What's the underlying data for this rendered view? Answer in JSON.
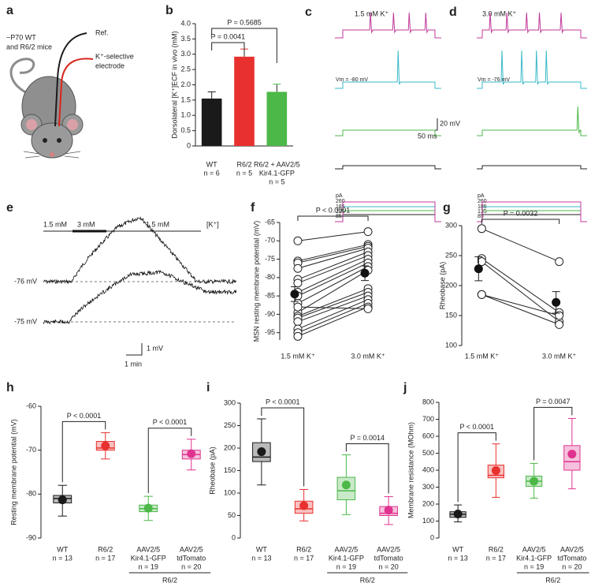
{
  "panel_a": {
    "label": "a",
    "mice": [
      "~P70 WT",
      "and R6/2 mice"
    ],
    "reference": "Ref.",
    "electrode": [
      "K⁺-selective",
      "electrode"
    ]
  },
  "panel_c": {
    "label": "c",
    "condition": "1.5 mM K⁺",
    "vm": "Vm = -80 mV",
    "scale_voltage": "20 mV",
    "scale_time": "50 ms",
    "current_unit": "pA",
    "currents": [
      260,
      185,
      135,
      85
    ]
  },
  "panel_d": {
    "label": "d",
    "condition": "3.0 mM K⁺",
    "vm": "Vm = -76 mV",
    "current_unit": "pA",
    "currents": [
      260,
      185,
      135,
      85
    ]
  },
  "panel_e": {
    "label": "e",
    "concentrations": [
      "1.5 mM",
      "3 mM",
      "1.5 mM"
    ],
    "ion": "[K⁺]",
    "potentials": [
      "-76 mV",
      "-75 mV"
    ],
    "scale_voltage": "1 mV",
    "scale_time": "1 min"
  },
  "chart_data": [
    {
      "type": "bar",
      "panel": "b",
      "y_label": "Dorsolateral [K⁺]ECF in vivo (mM)",
      "categories": [
        [
          "WT"
        ],
        [
          "R6/2"
        ],
        [
          "R6/2 + AAV2/5",
          "Kir4.1-GFP"
        ]
      ],
      "n_labels": [
        "n = 6",
        "n = 5",
        "n = 5"
      ],
      "values": [
        1.55,
        2.92,
        1.77
      ],
      "errors": [
        0.22,
        0.25,
        0.25
      ],
      "colors": [
        "#1a1a1a",
        "#e8312f",
        "#4cb848"
      ],
      "ylim": [
        0,
        4
      ],
      "yticks": [
        0,
        0.5,
        {
          "value": 1,
          "label": "1.0"
        },
        1.5,
        {
          "value": 2,
          "label": "2.0"
        },
        2.5,
        {
          "value": 3,
          "label": "3.0"
        },
        3.5,
        {
          "value": 4,
          "label": "4.0"
        }
      ],
      "annotations": [
        "P = 0.5685",
        "P = 0.0041"
      ]
    },
    {
      "type": "paired",
      "panel": "f",
      "y_label": "MSN resting membrane potential (mV)",
      "categories": [
        [
          "1.5 mM K⁺"
        ],
        [
          "3.0 mM K⁺"
        ]
      ],
      "values": [
        [
          -70,
          -67.5
        ],
        [
          -75.5,
          -71
        ],
        [
          -76,
          -71.5
        ],
        [
          -77.5,
          -72
        ],
        [
          -80.5,
          -73
        ],
        [
          -81.5,
          -74
        ],
        [
          -84,
          -75
        ],
        [
          -85,
          -76
        ],
        [
          -87,
          -77
        ],
        [
          -89.5,
          -78
        ],
        [
          -90.5,
          -83
        ],
        [
          -91,
          -84
        ],
        [
          -92,
          -85
        ],
        [
          -94,
          -86
        ],
        [
          -95,
          -87
        ],
        [
          -96,
          -88
        ],
        [
          -88,
          -88.5
        ]
      ],
      "mean": [
        -84.5,
        -78.8
      ],
      "error": [
        2,
        2
      ],
      "ylim": [
        -97,
        -65
      ],
      "yticks": [
        -95,
        -90,
        -85,
        -80,
        -75,
        -70,
        -65
      ],
      "annotations": [
        "P < 0.0001"
      ]
    },
    {
      "type": "paired",
      "panel": "g",
      "y_label": "Rheobase (pA)",
      "categories": [
        [
          "1.5 mM K⁺"
        ],
        [
          "3.0 mM K⁺"
        ]
      ],
      "values": [
        [
          295,
          240
        ],
        [
          245,
          155
        ],
        [
          240,
          140
        ],
        [
          185,
          150
        ],
        [
          185,
          135
        ]
      ],
      "mean": [
        228,
        172
      ],
      "error": [
        20,
        18
      ],
      "ylim": [
        100,
        300
      ],
      "yticks": [
        100,
        150,
        200,
        250,
        300
      ],
      "annotations": [
        "P = 0.0032"
      ]
    },
    {
      "type": "box",
      "panel": "h",
      "y_label": "Resting membrane potential (mV)",
      "categories": [
        [
          "WT"
        ],
        [
          "R6/2"
        ],
        [
          "AAV2/5",
          "Kir4.1-GFP"
        ],
        [
          "AAV2/5",
          "tdTomato"
        ]
      ],
      "n_labels": [
        "n = 13",
        "n = 17",
        "n = 19",
        "n = 20"
      ],
      "group_label": "R6/2",
      "colors": [
        "#1a1a1a",
        "#e8312f",
        "#4cb848",
        "#e0338f"
      ],
      "boxes": [
        {
          "low": -85,
          "q1": -82,
          "median": -81,
          "q3": -80.3,
          "high": -78,
          "mean": -81.3
        },
        {
          "low": -72,
          "q1": -70,
          "median": -69.5,
          "q3": -68,
          "high": -66,
          "mean": -69
        },
        {
          "low": -86,
          "q1": -84,
          "median": -83.3,
          "q3": -82.5,
          "high": -80.5,
          "mean": -83.2
        },
        {
          "low": -74.5,
          "q1": -72,
          "median": -71,
          "q3": -70,
          "high": -67.5,
          "mean": -70.8
        }
      ],
      "ylim": [
        -90,
        -60
      ],
      "yticks": [
        -90,
        -80,
        -70,
        -60
      ],
      "annotations": [
        "P < 0.0001",
        "P < 0.0001"
      ]
    },
    {
      "type": "box",
      "panel": "i",
      "y_label": "Rheobase (pA)",
      "categories": [
        [
          "WT"
        ],
        [
          "R6/2"
        ],
        [
          "AAV2/5",
          "Kir4.1-GFP"
        ],
        [
          "AAV2/5",
          "tdTomato"
        ]
      ],
      "n_labels": [
        "n = 13",
        "n = 17",
        "n = 19",
        "n = 20"
      ],
      "group_label": "R6/2",
      "colors": [
        "#1a1a1a",
        "#e8312f",
        "#4cb848",
        "#e0338f"
      ],
      "boxes": [
        {
          "low": 118,
          "q1": 170,
          "median": 180,
          "q3": 212,
          "high": 265,
          "mean": 192
        },
        {
          "low": 38,
          "q1": 55,
          "median": 65,
          "q3": 82,
          "high": 108,
          "mean": 72
        },
        {
          "low": 52,
          "q1": 85,
          "median": 105,
          "q3": 135,
          "high": 185,
          "mean": 118
        },
        {
          "low": 30,
          "q1": 50,
          "median": 55,
          "q3": 70,
          "high": 92,
          "mean": 62
        }
      ],
      "ylim": [
        0,
        300
      ],
      "yticks": [
        0,
        50,
        100,
        150,
        200,
        250,
        300
      ],
      "annotations": [
        "P < 0.0001",
        "P = 0.0014"
      ]
    },
    {
      "type": "box",
      "panel": "j",
      "y_label": "Membrane resistance (MOhm)",
      "categories": [
        [
          "WT"
        ],
        [
          "R6/2"
        ],
        [
          "AAV2/5",
          "Kir4.1-GFP"
        ],
        [
          "AAV2/5",
          "tdTomato"
        ]
      ],
      "n_labels": [
        "n = 13",
        "n = 17",
        "n = 19",
        "n = 20"
      ],
      "group_label": "R6/2",
      "colors": [
        "#1a1a1a",
        "#e8312f",
        "#4cb848",
        "#e0338f"
      ],
      "boxes": [
        {
          "low": 95,
          "q1": 122,
          "median": 140,
          "q3": 155,
          "high": 195,
          "mean": 142
        },
        {
          "low": 240,
          "q1": 355,
          "median": 370,
          "q3": 430,
          "high": 555,
          "mean": 398
        },
        {
          "low": 235,
          "q1": 305,
          "median": 335,
          "q3": 365,
          "high": 440,
          "mean": 335
        },
        {
          "low": 290,
          "q1": 400,
          "median": 450,
          "q3": 545,
          "high": 705,
          "mean": 495
        }
      ],
      "ylim": [
        0,
        800
      ],
      "yticks": [
        0,
        100,
        200,
        300,
        400,
        500,
        600,
        700,
        800
      ],
      "annotations": [
        "P < 0.0001",
        "P = 0.0047"
      ]
    }
  ]
}
